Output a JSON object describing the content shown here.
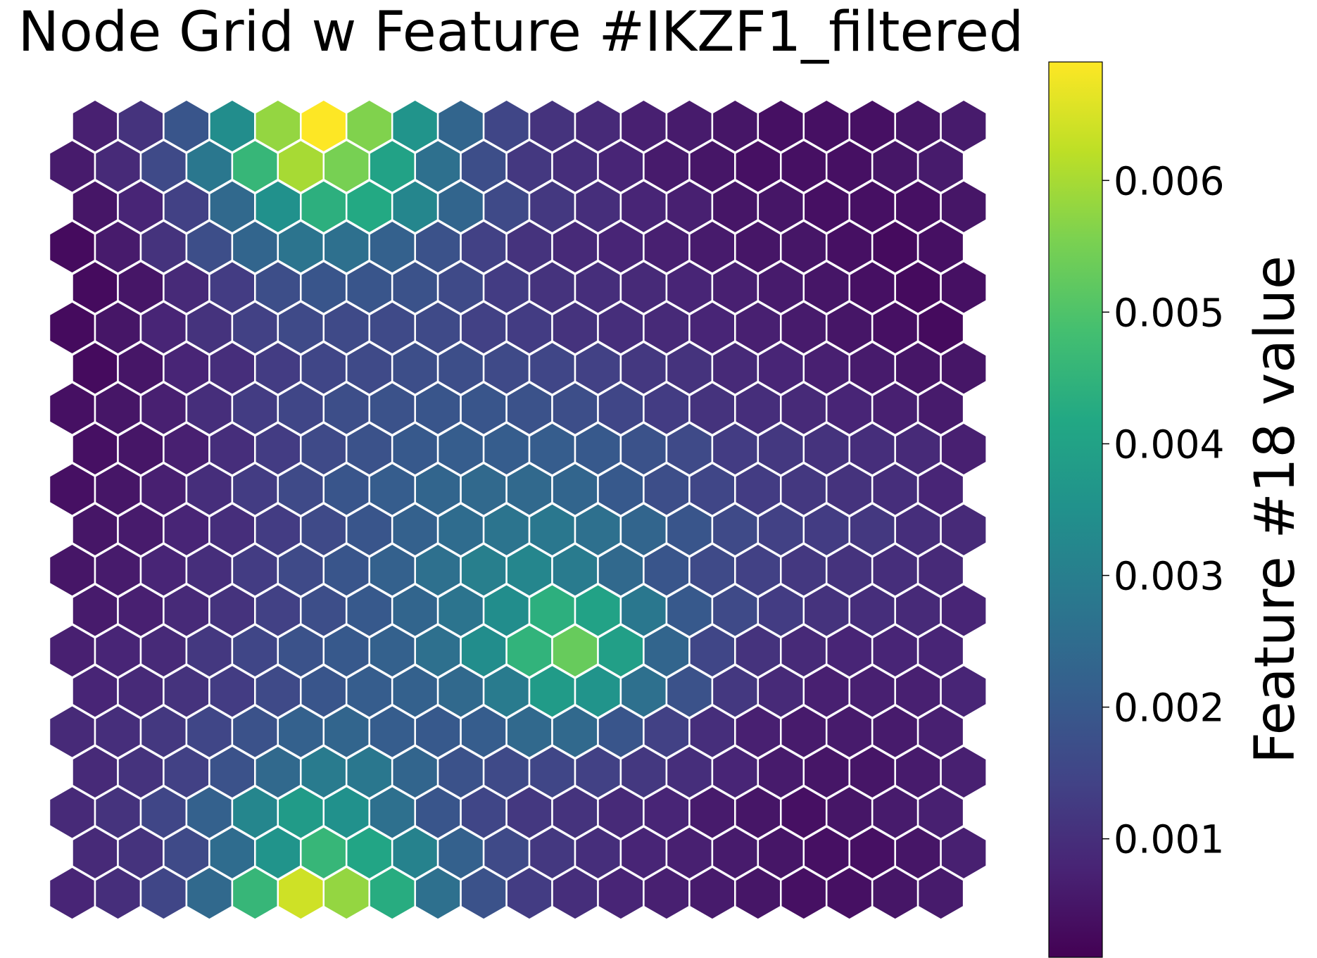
{
  "chart_data": {
    "type": "heatmap",
    "layout": "hexagonal",
    "title": "Node Grid w Feature #IKZF1_filtered",
    "colorbar": {
      "label": "Feature #18 value",
      "colormap": "viridis",
      "range": [
        0.0001,
        0.0069
      ],
      "ticks": [
        {
          "value": 0.001,
          "label": "0.001"
        },
        {
          "value": 0.002,
          "label": "0.002"
        },
        {
          "value": 0.003,
          "label": "0.003"
        },
        {
          "value": 0.004,
          "label": "0.004"
        },
        {
          "value": 0.005,
          "label": "0.005"
        },
        {
          "value": 0.006,
          "label": "0.006"
        }
      ]
    },
    "grid": {
      "rows": 20,
      "cols": 20,
      "row_order": "top-to-bottom",
      "values": [
        [
          0.0007,
          0.0011,
          0.0019,
          0.0034,
          0.0058,
          0.0069,
          0.0056,
          0.0036,
          0.0023,
          0.0015,
          0.0011,
          0.0009,
          0.0007,
          0.0006,
          0.0005,
          0.0004,
          0.0004,
          0.0004,
          0.0005,
          0.0006
        ],
        [
          0.0006,
          0.0009,
          0.0016,
          0.0028,
          0.0046,
          0.006,
          0.0055,
          0.004,
          0.0026,
          0.0017,
          0.0012,
          0.001,
          0.0008,
          0.0006,
          0.0005,
          0.0004,
          0.0004,
          0.0004,
          0.0005,
          0.0006
        ],
        [
          0.0005,
          0.0008,
          0.0014,
          0.0024,
          0.0035,
          0.0044,
          0.0042,
          0.0032,
          0.0023,
          0.0016,
          0.0012,
          0.001,
          0.0008,
          0.0007,
          0.0005,
          0.0005,
          0.0004,
          0.0004,
          0.0004,
          0.0005
        ],
        [
          0.0003,
          0.0006,
          0.0011,
          0.0017,
          0.0023,
          0.0027,
          0.0026,
          0.0022,
          0.0018,
          0.0014,
          0.0011,
          0.0009,
          0.0008,
          0.0007,
          0.0006,
          0.0005,
          0.0005,
          0.0004,
          0.0003,
          0.0004
        ],
        [
          0.0003,
          0.0005,
          0.0009,
          0.0013,
          0.0017,
          0.0019,
          0.0019,
          0.0018,
          0.0016,
          0.0013,
          0.0011,
          0.001,
          0.0009,
          0.0008,
          0.0007,
          0.0006,
          0.0005,
          0.0004,
          0.0003,
          0.0004
        ],
        [
          0.0003,
          0.0005,
          0.0008,
          0.0011,
          0.0014,
          0.0016,
          0.0016,
          0.0016,
          0.0016,
          0.0014,
          0.0013,
          0.0011,
          0.001,
          0.0009,
          0.0008,
          0.0007,
          0.0006,
          0.0005,
          0.0004,
          0.0003
        ],
        [
          0.0003,
          0.0005,
          0.0008,
          0.001,
          0.0013,
          0.0015,
          0.0016,
          0.0017,
          0.0017,
          0.0016,
          0.0015,
          0.0014,
          0.0012,
          0.0011,
          0.0009,
          0.0008,
          0.0007,
          0.0006,
          0.0005,
          0.0005
        ],
        [
          0.0004,
          0.0005,
          0.0007,
          0.001,
          0.0013,
          0.0015,
          0.0017,
          0.0018,
          0.0019,
          0.0019,
          0.0018,
          0.0017,
          0.0015,
          0.0013,
          0.0011,
          0.001,
          0.0009,
          0.0008,
          0.0007,
          0.0006
        ],
        [
          0.0004,
          0.0005,
          0.0007,
          0.001,
          0.0013,
          0.0016,
          0.0018,
          0.002,
          0.0021,
          0.0021,
          0.0021,
          0.002,
          0.0018,
          0.0016,
          0.0013,
          0.0012,
          0.0011,
          0.001,
          0.0009,
          0.0007
        ],
        [
          0.0004,
          0.0005,
          0.0007,
          0.001,
          0.0013,
          0.0016,
          0.0019,
          0.0021,
          0.0023,
          0.0024,
          0.0024,
          0.0023,
          0.002,
          0.0017,
          0.0015,
          0.0013,
          0.0012,
          0.0011,
          0.001,
          0.0008
        ],
        [
          0.0005,
          0.0006,
          0.0008,
          0.001,
          0.0013,
          0.0016,
          0.0019,
          0.0022,
          0.0025,
          0.0027,
          0.0028,
          0.0026,
          0.0023,
          0.0019,
          0.0016,
          0.0014,
          0.0013,
          0.0012,
          0.001,
          0.0009
        ],
        [
          0.0005,
          0.0006,
          0.0008,
          0.001,
          0.0013,
          0.0016,
          0.0019,
          0.0022,
          0.0026,
          0.003,
          0.0032,
          0.0029,
          0.0024,
          0.0019,
          0.0016,
          0.0014,
          0.0012,
          0.0011,
          0.001,
          0.0009
        ],
        [
          0.0006,
          0.0007,
          0.0009,
          0.0011,
          0.0014,
          0.0017,
          0.002,
          0.0023,
          0.0027,
          0.0034,
          0.0044,
          0.004,
          0.0028,
          0.002,
          0.0016,
          0.0013,
          0.0011,
          0.001,
          0.0009,
          0.0008
        ],
        [
          0.0007,
          0.0008,
          0.0009,
          0.0012,
          0.0015,
          0.0018,
          0.002,
          0.0022,
          0.0026,
          0.0034,
          0.0045,
          0.0053,
          0.0039,
          0.0023,
          0.0015,
          0.0011,
          0.0009,
          0.0008,
          0.0008,
          0.0008
        ],
        [
          0.0008,
          0.0009,
          0.0011,
          0.0013,
          0.0016,
          0.0019,
          0.0021,
          0.0022,
          0.0024,
          0.0029,
          0.0038,
          0.0036,
          0.0026,
          0.0018,
          0.0012,
          0.0009,
          0.0007,
          0.0007,
          0.0007,
          0.0008
        ],
        [
          0.0009,
          0.001,
          0.0012,
          0.0015,
          0.0018,
          0.0022,
          0.0023,
          0.0021,
          0.002,
          0.0021,
          0.0024,
          0.0024,
          0.0019,
          0.0014,
          0.001,
          0.0007,
          0.0006,
          0.0006,
          0.0006,
          0.0007
        ],
        [
          0.0009,
          0.0011,
          0.0014,
          0.0018,
          0.0024,
          0.0029,
          0.0028,
          0.0023,
          0.0018,
          0.0016,
          0.0015,
          0.0014,
          0.0012,
          0.001,
          0.0008,
          0.0006,
          0.0005,
          0.0005,
          0.0006,
          0.0007
        ],
        [
          0.0009,
          0.0011,
          0.0015,
          0.0022,
          0.0032,
          0.0038,
          0.0035,
          0.0026,
          0.0019,
          0.0015,
          0.0012,
          0.0011,
          0.0009,
          0.0008,
          0.0006,
          0.0005,
          0.0004,
          0.0005,
          0.0006,
          0.0007
        ],
        [
          0.0009,
          0.0011,
          0.0016,
          0.0025,
          0.0036,
          0.0046,
          0.0041,
          0.0031,
          0.0022,
          0.0016,
          0.0012,
          0.001,
          0.0008,
          0.0007,
          0.0006,
          0.0005,
          0.0004,
          0.0004,
          0.0005,
          0.0007
        ],
        [
          0.0008,
          0.001,
          0.0015,
          0.0024,
          0.0046,
          0.0064,
          0.0058,
          0.0043,
          0.0026,
          0.0018,
          0.0013,
          0.001,
          0.0008,
          0.0007,
          0.0006,
          0.0005,
          0.0004,
          0.0004,
          0.0005,
          0.0006
        ]
      ]
    }
  }
}
